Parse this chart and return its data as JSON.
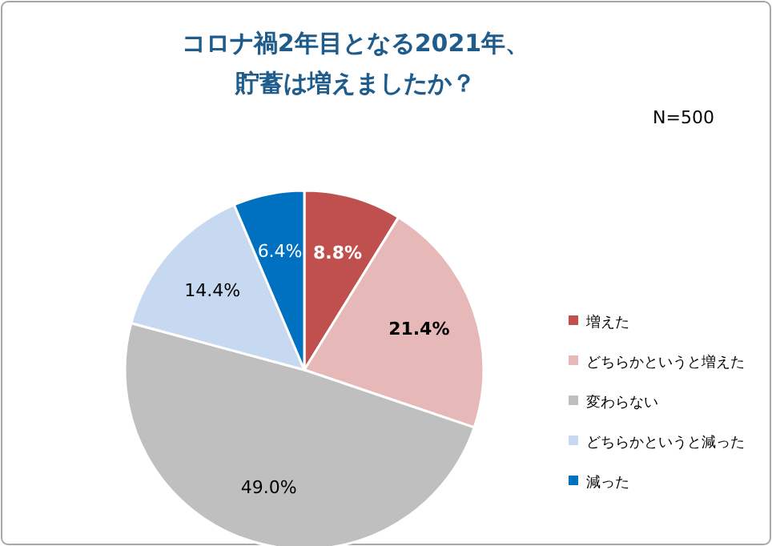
{
  "chart_data": {
    "type": "pie",
    "title": "コロナ禍2年目となる2021年、貯蓄は増えましたか？",
    "annotations": [
      "N=500"
    ],
    "categories": [
      "増えた",
      "どちらかというと増えた",
      "変わらない",
      "どちらかというと減った",
      "減った"
    ],
    "values": [
      8.8,
      21.4,
      49.0,
      14.4,
      6.4
    ],
    "value_labels": [
      "8.8%",
      "21.4%",
      "49.0%",
      "14.4%",
      "6.4%"
    ],
    "colors": [
      "#c0504d",
      "#e6b9b8",
      "#bfbfbf",
      "#c6d9f1",
      "#0070c0"
    ],
    "legend": "right"
  }
}
